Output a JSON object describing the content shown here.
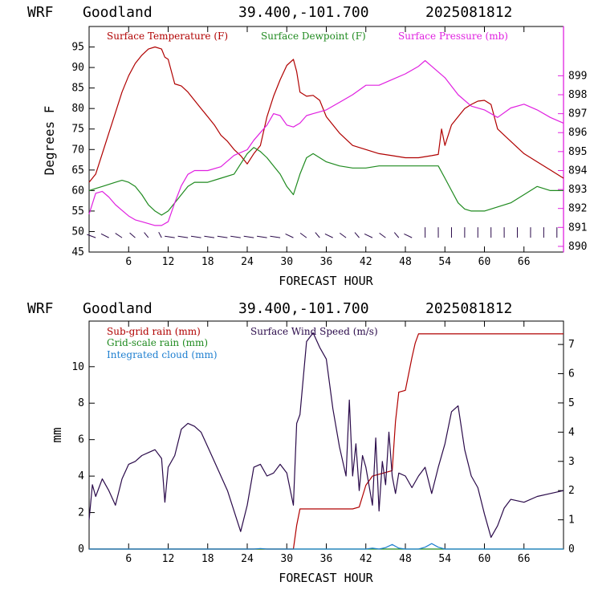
{
  "chart_data": [
    {
      "type": "line",
      "header": {
        "model": "WRF",
        "location": "Goodland",
        "coords": "39.400,-101.700",
        "run": "2025081812"
      },
      "xlabel": "FORECAST HOUR",
      "ylabel": "Degrees F",
      "xlim": [
        0,
        72
      ],
      "ylim": [
        45,
        100
      ],
      "y2lim": [
        889.7,
        901.6
      ],
      "x_ticks": [
        6,
        12,
        18,
        24,
        30,
        36,
        42,
        48,
        54,
        60,
        66
      ],
      "y_ticks": [
        45,
        50,
        55,
        60,
        65,
        70,
        75,
        80,
        85,
        90,
        95
      ],
      "y2_ticks": [
        890,
        891,
        892,
        893,
        894,
        895,
        896,
        897,
        898,
        899
      ],
      "series": [
        {
          "name": "Surface Temperature (F)",
          "color": "#b00000",
          "axis": "left",
          "x": [
            0,
            1,
            2,
            3,
            4,
            5,
            6,
            7,
            8,
            9,
            10,
            11,
            11.5,
            12,
            13,
            14,
            15,
            16,
            17,
            18,
            19,
            20,
            21,
            22,
            23,
            24,
            25,
            26,
            27,
            28,
            29,
            30,
            31,
            31.5,
            32,
            33,
            34,
            35,
            36,
            38,
            40,
            42,
            44,
            46,
            48,
            50,
            52,
            53,
            53.5,
            54,
            55,
            56,
            57,
            58,
            59,
            60,
            61,
            62,
            64,
            66,
            68,
            70,
            72
          ],
          "values": [
            62,
            64,
            69,
            74,
            79,
            84,
            88,
            91,
            93,
            94.5,
            95,
            94.5,
            92.5,
            92,
            86,
            85.5,
            84,
            82,
            80,
            78,
            76,
            73.5,
            72,
            70,
            68.5,
            66.5,
            69,
            71,
            78,
            83,
            87,
            90.5,
            92,
            89,
            84,
            83,
            83.2,
            82,
            78,
            74,
            71,
            70,
            69,
            68.5,
            68,
            68,
            68.5,
            68.8,
            75,
            71,
            76,
            78,
            80,
            81,
            81.8,
            82,
            81,
            75,
            72,
            69,
            67,
            65,
            63
          ]
        },
        {
          "name": "Surface Dewpoint (F)",
          "color": "#1f8a1f",
          "axis": "left",
          "x": [
            0,
            1,
            2,
            3,
            4,
            5,
            6,
            7,
            8,
            9,
            10,
            11,
            12,
            13,
            14,
            15,
            16,
            17,
            18,
            20,
            22,
            24,
            25,
            26,
            27,
            28,
            29,
            30,
            31,
            32,
            33,
            34,
            36,
            38,
            40,
            42,
            44,
            46,
            48,
            50,
            52,
            53,
            54,
            55,
            56,
            57,
            58,
            60,
            62,
            64,
            66,
            68,
            70,
            72
          ],
          "values": [
            60,
            60.5,
            61,
            61.5,
            62,
            62.5,
            62,
            61,
            59,
            56.5,
            55,
            54,
            55,
            57,
            59,
            61,
            62,
            62,
            62,
            63,
            64,
            69,
            70.5,
            69.5,
            68,
            66,
            64,
            61,
            59,
            64,
            68,
            69,
            67,
            66,
            65.5,
            65.5,
            66,
            66,
            66,
            66,
            66,
            66,
            63,
            60,
            57,
            55.5,
            55,
            55,
            56,
            57,
            59,
            61,
            60,
            60
          ]
        },
        {
          "name": "Surface Pressure (mb)",
          "color": "#e020e0",
          "axis": "right",
          "x": [
            0,
            1,
            2,
            3,
            4,
            5,
            6,
            7,
            8,
            9,
            10,
            11,
            12,
            13,
            14,
            15,
            16,
            17,
            18,
            20,
            22,
            24,
            25,
            26,
            27,
            28,
            29,
            30,
            31,
            32,
            33,
            34,
            35,
            36,
            38,
            40,
            42,
            44,
            46,
            48,
            50,
            51,
            52,
            54,
            56,
            58,
            60,
            62,
            64,
            66,
            68,
            70,
            72
          ],
          "values": [
            891.7,
            892.8,
            892.9,
            892.6,
            892.2,
            891.9,
            891.6,
            891.4,
            891.3,
            891.2,
            891.1,
            891.1,
            891.3,
            892.3,
            893.2,
            893.8,
            894,
            894,
            894,
            894.2,
            894.8,
            895.1,
            895.6,
            896,
            896.4,
            897,
            896.9,
            896.4,
            896.3,
            896.5,
            896.9,
            897,
            897.1,
            897.2,
            897.6,
            898,
            898.5,
            898.5,
            898.8,
            899.1,
            899.5,
            899.8,
            899.5,
            898.9,
            898,
            897.4,
            897.2,
            896.8,
            897.3,
            897.5,
            897.2,
            896.8,
            896.5
          ]
        }
      ],
      "wind_barbs_row": true
    },
    {
      "type": "line",
      "header": {
        "model": "WRF",
        "location": "Goodland",
        "coords": "39.400,-101.700",
        "run": "2025081812"
      },
      "xlabel": "FORECAST HOUR",
      "ylabel": "mm",
      "xlim": [
        0,
        72
      ],
      "ylim": [
        0,
        12.5
      ],
      "y2lim": [
        0,
        7.8
      ],
      "x_ticks": [
        6,
        12,
        18,
        24,
        30,
        36,
        42,
        48,
        54,
        60,
        66
      ],
      "y_ticks": [
        0,
        2,
        4,
        6,
        8,
        10
      ],
      "y2_ticks": [
        0,
        1,
        2,
        3,
        4,
        5,
        6,
        7
      ],
      "series": [
        {
          "name": "Sub-grid rain (mm)",
          "color": "#b00000",
          "axis": "left",
          "x": [
            0,
            31,
            31.5,
            32,
            40,
            41,
            42,
            43,
            44,
            45,
            46,
            46.5,
            47,
            48,
            49,
            49.5,
            50,
            72
          ],
          "values": [
            0,
            0,
            1.3,
            2.2,
            2.2,
            2.3,
            3.5,
            4,
            4.1,
            4.2,
            4.3,
            7,
            8.6,
            8.7,
            10.5,
            11.3,
            11.8,
            11.8
          ]
        },
        {
          "name": "Grid-scale rain (mm)",
          "color": "#1f8a1f",
          "axis": "left",
          "x": [
            0,
            72
          ],
          "values": [
            0,
            0
          ]
        },
        {
          "name": "Integrated cloud (mm)",
          "color": "#1e7fd0",
          "axis": "left",
          "x": [
            0,
            25,
            26,
            27,
            42,
            43,
            44,
            45,
            46,
            47,
            48,
            50,
            51,
            52,
            53,
            54,
            72
          ],
          "values": [
            0,
            0,
            0.03,
            0,
            0,
            0.05,
            0,
            0.08,
            0.25,
            0.05,
            0,
            0,
            0.1,
            0.3,
            0.1,
            0,
            0
          ]
        },
        {
          "name": "Surface Wind Speed (m/s)",
          "color": "#2a0a4a",
          "axis": "right",
          "x": [
            0,
            0.5,
            1,
            2,
            3,
            4,
            5,
            6,
            7,
            8,
            9,
            10,
            11,
            11.5,
            12,
            13,
            14,
            15,
            16,
            17,
            18,
            19,
            20,
            21,
            22,
            23,
            24,
            25,
            26,
            27,
            28,
            29,
            30,
            31,
            31.5,
            32,
            33,
            34,
            35,
            36,
            37,
            38,
            39,
            39.5,
            40,
            40.5,
            41,
            41.5,
            42,
            43,
            43.5,
            44,
            44.5,
            45,
            45.5,
            46,
            46.5,
            47,
            48,
            49,
            50,
            51,
            52,
            53,
            54,
            55,
            56,
            57,
            58,
            59,
            60,
            61,
            62,
            63,
            64,
            66,
            68,
            70,
            72
          ],
          "values": [
            1,
            2.2,
            1.8,
            2.4,
            2,
            1.5,
            2.4,
            2.9,
            3,
            3.2,
            3.3,
            3.4,
            3.1,
            1.6,
            2.8,
            3.2,
            4.1,
            4.3,
            4.2,
            4,
            3.5,
            3,
            2.5,
            2,
            1.3,
            0.6,
            1.5,
            2.8,
            2.9,
            2.5,
            2.6,
            2.9,
            2.6,
            1.5,
            4.3,
            4.6,
            7.1,
            7.4,
            6.9,
            6.5,
            4.8,
            3.5,
            2.5,
            5.1,
            2.5,
            3.6,
            2,
            3.2,
            2.8,
            1.5,
            3.8,
            1.3,
            3,
            2.2,
            4,
            2.5,
            1.9,
            2.6,
            2.5,
            2.1,
            2.5,
            2.8,
            1.9,
            2.8,
            3.6,
            4.7,
            4.9,
            3.4,
            2.5,
            2.1,
            1.2,
            0.4,
            0.8,
            1.4,
            1.7,
            1.6,
            1.8,
            1.9,
            2
          ]
        }
      ]
    }
  ]
}
